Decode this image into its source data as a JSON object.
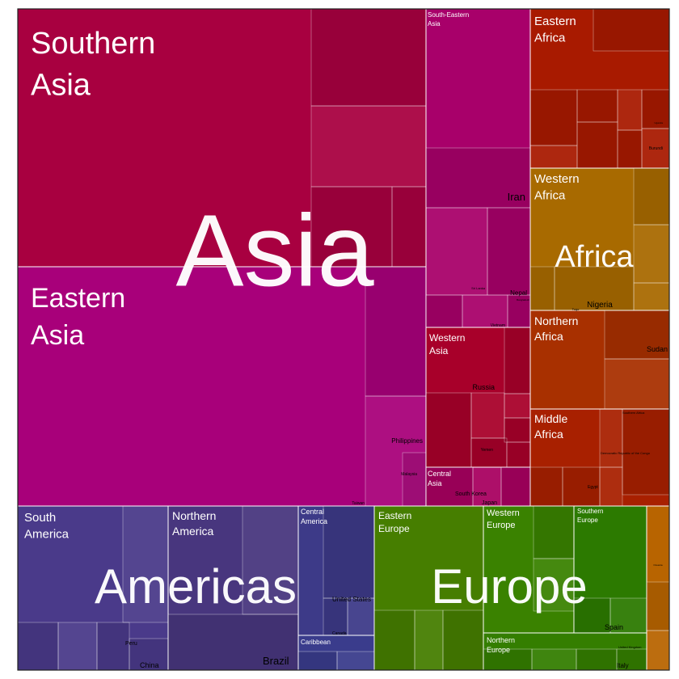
{
  "chart_data": {
    "type": "treemap",
    "title": "",
    "colors": {
      "Asia": "#a8005a",
      "Africa": "#a82a00",
      "Americas": "#3d3a88",
      "Europe": "#3c8000",
      "border": "#ffffff",
      "frame": "#222222",
      "label": "#ffffff",
      "leaf_label": "#000000"
    },
    "continents": [
      {
        "name": "Asia",
        "color": "#a8005a",
        "regions": [
          {
            "name": "Southern Asia",
            "color": "#a80040",
            "labels": [
              {
                "text": "Iran"
              },
              {
                "text": "Nepal"
              }
            ]
          },
          {
            "name": "Eastern Asia",
            "color": "#a8007a",
            "labels": [
              {
                "text": "Taiwan"
              }
            ]
          },
          {
            "name": "South-Eastern Asia",
            "color": "#a8006a",
            "labels": [
              {
                "text": "Philippines"
              },
              {
                "text": "Vietnam"
              },
              {
                "text": "Malaysia"
              },
              {
                "text": "Bangladesh"
              },
              {
                "text": "Sri Lanka"
              }
            ]
          },
          {
            "name": "Western Asia",
            "color": "#a8002a",
            "labels": [
              {
                "text": "Russia"
              },
              {
                "text": "Yemen"
              }
            ]
          },
          {
            "name": "Central Asia",
            "color": "#a80060",
            "labels": [
              {
                "text": "South Korea"
              },
              {
                "text": "Japan"
              }
            ]
          }
        ]
      },
      {
        "name": "Africa",
        "color": "#a82a00",
        "regions": [
          {
            "name": "Eastern Africa",
            "color": "#a81a00",
            "labels": [
              {
                "text": "Uganda"
              },
              {
                "text": "Burundi"
              }
            ]
          },
          {
            "name": "Western Africa",
            "color": "#a86a00",
            "labels": [
              {
                "text": "Nigeria"
              },
              {
                "text": "Togo"
              }
            ]
          },
          {
            "name": "Northern Africa",
            "color": "#a83000",
            "labels": [
              {
                "text": "Sudan"
              }
            ]
          },
          {
            "name": "Middle Africa",
            "color": "#a82000",
            "labels": [
              {
                "text": "Democratic Republic of the Congo"
              },
              {
                "text": "Southern Africa"
              },
              {
                "text": "Egypt"
              }
            ]
          }
        ]
      },
      {
        "name": "Americas",
        "color": "#3d3a88",
        "regions": [
          {
            "name": "South America",
            "color": "#4a3a8a",
            "labels": [
              {
                "text": "Peru"
              },
              {
                "text": "China"
              }
            ]
          },
          {
            "name": "Northern America",
            "color": "#48367e",
            "labels": [
              {
                "text": "Brazil"
              }
            ]
          },
          {
            "name": "Central America",
            "color": "#3d3a88",
            "labels": [
              {
                "text": "United States"
              },
              {
                "text": "Canada"
              }
            ]
          },
          {
            "name": "Caribbean",
            "color": "#3a3c8c",
            "labels": []
          }
        ]
      },
      {
        "name": "Europe",
        "color": "#3c8000",
        "regions": [
          {
            "name": "Eastern Europe",
            "color": "#467e00",
            "labels": []
          },
          {
            "name": "Western Europe",
            "color": "#3a8200",
            "labels": []
          },
          {
            "name": "Southern Europe",
            "color": "#2c7a00",
            "labels": [
              {
                "text": "Spain"
              },
              {
                "text": "Italy"
              }
            ]
          },
          {
            "name": "Northern Europe",
            "color": "#347e00",
            "labels": [
              {
                "text": "United Kingdom"
              }
            ]
          }
        ]
      },
      {
        "name": "Oceania",
        "color": "#b86400",
        "regions": [
          {
            "name": "Oceania",
            "color": "#b86400",
            "labels": [
              {
                "text": "Oceania"
              }
            ]
          }
        ]
      }
    ]
  }
}
